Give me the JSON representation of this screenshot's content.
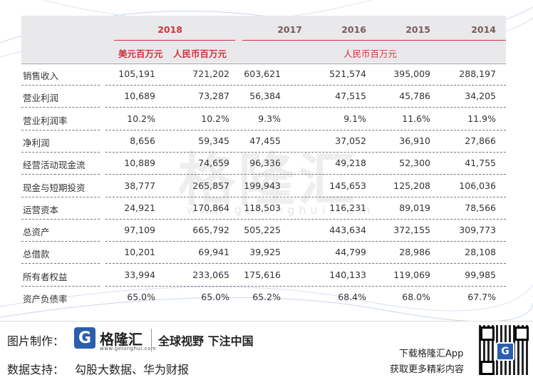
{
  "header": {
    "years": [
      "2018",
      "2017",
      "2016",
      "2015",
      "2014"
    ],
    "unit_usd": "美元百万元",
    "unit_rmb": "人民币百万元",
    "unit_rmb_all": "人民币百万元"
  },
  "rows": [
    {
      "label": "销售收入",
      "values": [
        "105,191",
        "721,202",
        "603,621",
        "521,574",
        "395,009",
        "288,197"
      ]
    },
    {
      "label": "营业利润",
      "values": [
        "10,689",
        "73,287",
        "56,384",
        "47,515",
        "45,786",
        "34,205"
      ]
    },
    {
      "label": "营业利润率",
      "values": [
        "10.2%",
        "10.2%",
        "9.3%",
        "9.1%",
        "11.6%",
        "11.9%"
      ]
    },
    {
      "label": "净利润",
      "values": [
        "8,656",
        "59,345",
        "47,455",
        "37,052",
        "36,910",
        "27,866"
      ]
    },
    {
      "label": "经营活动现金流",
      "values": [
        "10,889",
        "74,659",
        "96,336",
        "49,218",
        "52,300",
        "41,755"
      ]
    },
    {
      "label": "现金与短期投资",
      "values": [
        "38,777",
        "265,857",
        "199,943",
        "145,653",
        "125,208",
        "106,036"
      ]
    },
    {
      "label": "运营资本",
      "values": [
        "24,921",
        "170,864",
        "118,503",
        "116,231",
        "89,019",
        "78,566"
      ]
    },
    {
      "label": "总资产",
      "values": [
        "97,109",
        "665,792",
        "505,225",
        "443,634",
        "372,155",
        "309,773"
      ]
    },
    {
      "label": "总借款",
      "values": [
        "10,201",
        "69,941",
        "39,925",
        "44,799",
        "28,986",
        "28,108"
      ]
    },
    {
      "label": "所有者权益",
      "values": [
        "33,994",
        "233,065",
        "175,616",
        "140,133",
        "119,069",
        "99,985"
      ]
    },
    {
      "label": "资产负债率",
      "values": [
        "65.0%",
        "65.0%",
        "65.2%",
        "68.4%",
        "68.0%",
        "67.7%"
      ]
    }
  ],
  "watermark": {
    "text": "格隆汇",
    "url": "www.gelonghui.com"
  },
  "footer": {
    "made_label": "图片制作：",
    "logo_letter": "G",
    "logo_name": "格隆汇",
    "logo_url": "www.gelonghui.com",
    "slogan": "全球视野 下注中国",
    "source_label": "数据支持：",
    "source_text": "勾股大数据、华为财报",
    "download_line1": "下载格隆汇App",
    "download_line2": "获取更多精彩内容",
    "qr_letter": "G"
  },
  "colors": {
    "accent_red": "#d0323a",
    "brand_blue": "#2b5fad"
  }
}
